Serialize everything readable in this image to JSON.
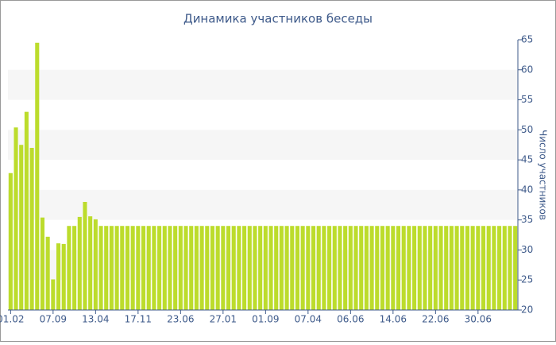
{
  "chart_data": {
    "type": "bar",
    "title": "Динамика участников беседы",
    "y_label": "Число участников",
    "categories": [
      "01.02",
      null,
      null,
      null,
      null,
      null,
      null,
      null,
      "07.09",
      null,
      null,
      null,
      null,
      null,
      null,
      null,
      "13.04",
      null,
      null,
      null,
      null,
      null,
      null,
      null,
      "17.11",
      null,
      null,
      null,
      null,
      null,
      null,
      null,
      "23.06",
      null,
      null,
      null,
      null,
      null,
      null,
      null,
      "27.01",
      null,
      null,
      null,
      null,
      null,
      null,
      null,
      "01.09",
      null,
      null,
      null,
      null,
      null,
      null,
      null,
      "07.04",
      null,
      null,
      null,
      null,
      null,
      null,
      null,
      "06.06",
      null,
      null,
      null,
      null,
      null,
      null,
      null,
      "14.06",
      null,
      null,
      null,
      null,
      null,
      null,
      null,
      "22.06",
      null,
      null,
      null,
      null,
      null,
      null,
      null,
      "30.06",
      null,
      null,
      null,
      null,
      null,
      null,
      null
    ],
    "values": [
      42.8,
      50.4,
      47.5,
      53,
      47,
      64.5,
      35.4,
      32.2,
      25.1,
      31.1,
      31,
      34,
      34,
      35.5,
      38,
      35.6,
      35.1,
      34,
      34,
      34,
      34,
      34,
      34,
      34,
      34,
      34,
      34,
      34,
      34,
      34,
      34,
      34,
      34,
      34,
      34,
      34,
      34,
      34,
      34,
      34,
      34,
      34,
      34,
      34,
      34,
      34,
      34,
      34,
      34,
      34,
      34,
      34,
      34,
      34,
      34,
      34,
      34,
      34,
      34,
      34,
      34,
      34,
      34,
      34,
      34,
      34,
      34,
      34,
      34,
      34,
      34,
      34,
      34,
      34,
      34,
      34,
      34,
      34,
      34,
      34,
      34,
      34,
      34,
      34,
      34,
      34,
      34,
      34,
      34,
      34,
      34,
      34,
      34,
      34,
      34,
      34
    ],
    "color": "#bcdc2c",
    "ylim": [
      20,
      65
    ],
    "yticks": [
      20,
      25,
      30,
      35,
      40,
      45,
      50,
      55,
      60,
      65
    ],
    "grid": "bands",
    "y_axis_side": "right"
  }
}
